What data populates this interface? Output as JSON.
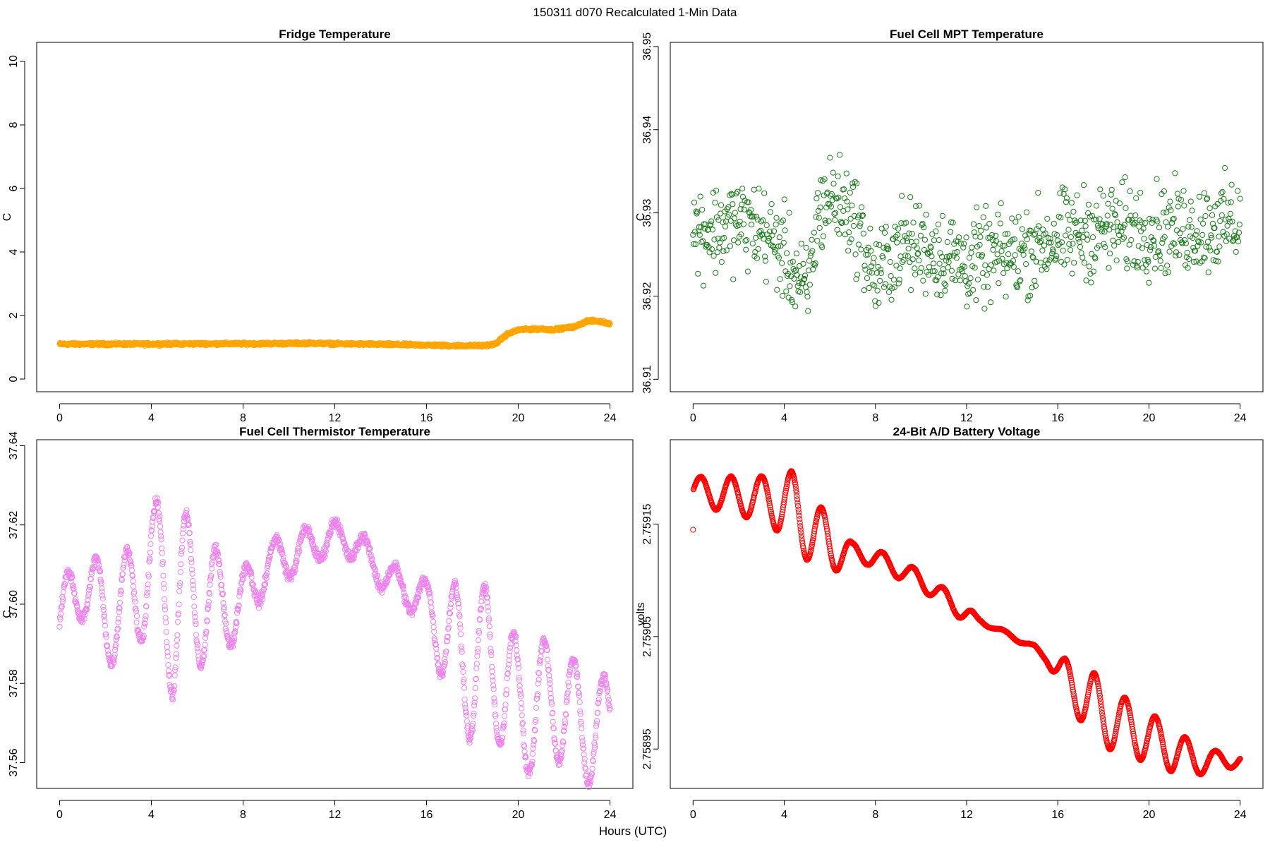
{
  "figure": {
    "suptitle": "150311   d070   Recalculated 1-Min Data",
    "xlabel": "Hours (UTC)"
  },
  "chart_data": [
    {
      "type": "scatter",
      "title": "Fridge Temperature",
      "xlabel": "",
      "ylabel": "C",
      "color": "#ffa500",
      "xlim": [
        -1,
        25
      ],
      "ylim": [
        -0.4,
        10.6
      ],
      "xticks": [
        0,
        4,
        8,
        12,
        16,
        20,
        24
      ],
      "yticks": [
        0,
        2,
        4,
        6,
        8,
        10
      ],
      "ytick_labels": [
        "0",
        "2",
        "4",
        "6",
        "8",
        "10"
      ],
      "series": [
        {
          "profile": [
            [
              0,
              1.1
            ],
            [
              2,
              1.1
            ],
            [
              4,
              1.1
            ],
            [
              6,
              1.11
            ],
            [
              8,
              1.11
            ],
            [
              10,
              1.12
            ],
            [
              11,
              1.13
            ],
            [
              12,
              1.11
            ],
            [
              14,
              1.09
            ],
            [
              16,
              1.07
            ],
            [
              17,
              1.05
            ],
            [
              18.5,
              1.05
            ],
            [
              19,
              1.1
            ],
            [
              19.5,
              1.4
            ],
            [
              20,
              1.55
            ],
            [
              21,
              1.58
            ],
            [
              21.5,
              1.55
            ],
            [
              22,
              1.6
            ],
            [
              22.5,
              1.65
            ],
            [
              23,
              1.83
            ],
            [
              23.5,
              1.82
            ],
            [
              24,
              1.75
            ]
          ],
          "noise": 0.06
        }
      ]
    },
    {
      "type": "scatter",
      "title": "Fuel Cell MPT Temperature",
      "xlabel": "",
      "ylabel": "C",
      "color": "#1a7a1a",
      "xlim": [
        -1,
        25
      ],
      "ylim": [
        36.9085,
        36.9505
      ],
      "xticks": [
        0,
        4,
        8,
        12,
        16,
        20,
        24
      ],
      "yticks": [
        36.91,
        36.92,
        36.93,
        36.94,
        36.95
      ],
      "ytick_labels": [
        "36.91",
        "36.92",
        "36.93",
        "36.94",
        "36.95"
      ],
      "series": [
        {
          "profile": [
            [
              0,
              36.928
            ],
            [
              1,
              36.928
            ],
            [
              2,
              36.929
            ],
            [
              3,
              36.928
            ],
            [
              4,
              36.925
            ],
            [
              5,
              36.92
            ],
            [
              5.5,
              36.93
            ],
            [
              6,
              36.932
            ],
            [
              7,
              36.93
            ],
            [
              8,
              36.922
            ],
            [
              9,
              36.926
            ],
            [
              10,
              36.926
            ],
            [
              12,
              36.924
            ],
            [
              14,
              36.925
            ],
            [
              16,
              36.927
            ],
            [
              18,
              36.928
            ],
            [
              20,
              36.928
            ],
            [
              22,
              36.928
            ],
            [
              24,
              36.929
            ]
          ],
          "noise": 0.008
        }
      ]
    },
    {
      "type": "scatter",
      "title": "Fuel Cell Thermistor Temperature",
      "xlabel": "",
      "ylabel": "C",
      "color": "#ee82ee",
      "xlim": [
        -1,
        25
      ],
      "ylim": [
        37.5535,
        37.6415
      ],
      "xticks": [
        0,
        4,
        8,
        12,
        16,
        20,
        24
      ],
      "yticks": [
        37.56,
        37.58,
        37.6,
        37.62,
        37.64
      ],
      "ytick_labels": [
        "37.56",
        "37.58",
        "37.60",
        "37.62",
        "37.64"
      ],
      "series": [
        {
          "profile": [
            [
              0,
              37.595
            ],
            [
              1,
              37.607
            ],
            [
              2,
              37.596
            ],
            [
              3,
              37.6
            ],
            [
              4,
              37.61
            ],
            [
              5,
              37.6
            ],
            [
              6,
              37.602
            ],
            [
              7,
              37.6
            ],
            [
              8,
              37.6
            ],
            [
              9,
              37.61
            ],
            [
              10,
              37.612
            ],
            [
              11,
              37.615
            ],
            [
              12,
              37.617
            ],
            [
              13,
              37.615
            ],
            [
              14,
              37.608
            ],
            [
              15,
              37.604
            ],
            [
              16,
              37.6
            ],
            [
              17,
              37.59
            ],
            [
              18,
              37.585
            ],
            [
              19,
              37.585
            ],
            [
              20,
              37.573
            ],
            [
              21,
              37.575
            ],
            [
              22,
              37.575
            ],
            [
              23,
              37.568
            ],
            [
              24,
              37.57
            ]
          ],
          "amp": [
            [
              0,
              0.008
            ],
            [
              4,
              0.016
            ],
            [
              5,
              0.025
            ],
            [
              7,
              0.012
            ],
            [
              9,
              0.006
            ],
            [
              12,
              0.004
            ],
            [
              15,
              0.004
            ],
            [
              16,
              0.006
            ],
            [
              17,
              0.015
            ],
            [
              18,
              0.02
            ],
            [
              24,
              0.012
            ]
          ],
          "period": 1.3,
          "noise": 0.002
        }
      ]
    },
    {
      "type": "scatter",
      "title": "24-Bit A/D Battery Voltage",
      "xlabel": "",
      "ylabel": "volts",
      "color": "#ff0000",
      "xlim": [
        -1,
        25
      ],
      "ylim": [
        2.758915,
        2.759225
      ],
      "xticks": [
        0,
        4,
        8,
        12,
        16,
        20,
        24
      ],
      "yticks": [
        2.75895,
        2.75905,
        2.75915
      ],
      "ytick_labels": [
        "2.75895",
        "2.75905",
        "2.75915"
      ],
      "series": [
        {
          "profile": [
            [
              0,
              2.75918
            ],
            [
              4,
              2.75917
            ],
            [
              6,
              2.75913
            ],
            [
              8,
              2.75912
            ],
            [
              10,
              2.7591
            ],
            [
              12,
              2.75907
            ],
            [
              13,
              2.75906
            ],
            [
              14,
              2.75905
            ],
            [
              15,
              2.75904
            ],
            [
              16,
              2.75902
            ],
            [
              18,
              2.75898
            ],
            [
              20,
              2.75896
            ],
            [
              22,
              2.75894
            ],
            [
              24,
              2.75894
            ]
          ],
          "amp": [
            [
              0,
              1.2e-05
            ],
            [
              3,
              2e-05
            ],
            [
              4.5,
              3.5e-05
            ],
            [
              6,
              2.5e-05
            ],
            [
              7,
              8e-06
            ],
            [
              12,
              8e-06
            ],
            [
              12.5,
              2e-06
            ],
            [
              15.5,
              2e-06
            ],
            [
              16.5,
              2e-05
            ],
            [
              17.5,
              3e-05
            ],
            [
              19,
              2.5e-05
            ],
            [
              21,
              2e-05
            ],
            [
              23,
              8e-06
            ],
            [
              24,
              6e-06
            ]
          ],
          "period": 1.33,
          "noise": 5e-07
        }
      ]
    }
  ]
}
